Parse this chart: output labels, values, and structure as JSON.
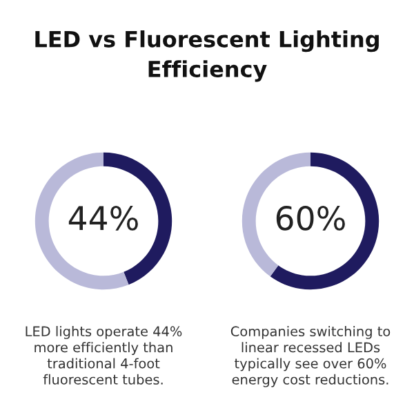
{
  "chart_data": [
    {
      "type": "donut",
      "title": "LED vs Fluorescent Lighting Efficiency",
      "categories": [
        null,
        null
      ],
      "values": [
        44,
        56
      ],
      "colors": [
        "#1f1b5f",
        "#b9b9d9"
      ],
      "value_labels": [
        "44%",
        null
      ],
      "annotations": [
        "LED lights operate 44%\nmore efficiently than\ntraditional 4-foot\nfluorescent tubes."
      ]
    },
    {
      "type": "donut",
      "categories": [
        null,
        null
      ],
      "values": [
        60,
        40
      ],
      "colors": [
        "#1f1b5f",
        "#b9b9d9"
      ],
      "value_labels": [
        "60%",
        null
      ],
      "annotations": [
        "Companies switching to\nlinear recessed LEDs\ntypically see over 60%\nenergy cost reductions."
      ]
    }
  ]
}
